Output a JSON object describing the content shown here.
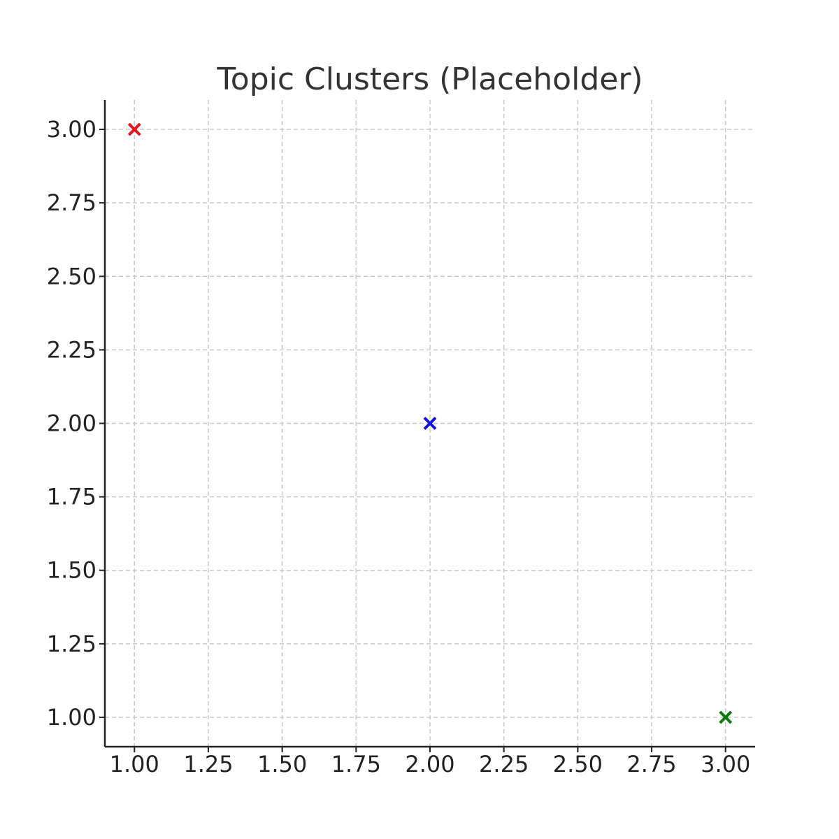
{
  "chart_data": {
    "type": "scatter",
    "title": "Topic Clusters (Placeholder)",
    "xlabel": "",
    "ylabel": "",
    "xlim": [
      0.9,
      3.1
    ],
    "ylim": [
      0.9,
      3.1
    ],
    "xticks": [
      "1.00",
      "1.25",
      "1.50",
      "1.75",
      "2.00",
      "2.25",
      "2.50",
      "2.75",
      "3.00"
    ],
    "yticks": [
      "1.00",
      "1.25",
      "1.50",
      "1.75",
      "2.00",
      "2.25",
      "2.50",
      "2.75",
      "3.00"
    ],
    "grid": true,
    "marker": "x",
    "points": [
      {
        "x": 1,
        "y": 3,
        "color": "#e8141c"
      },
      {
        "x": 2,
        "y": 2,
        "color": "#1010e0"
      },
      {
        "x": 3,
        "y": 1,
        "color": "#0a7a0a"
      }
    ]
  }
}
